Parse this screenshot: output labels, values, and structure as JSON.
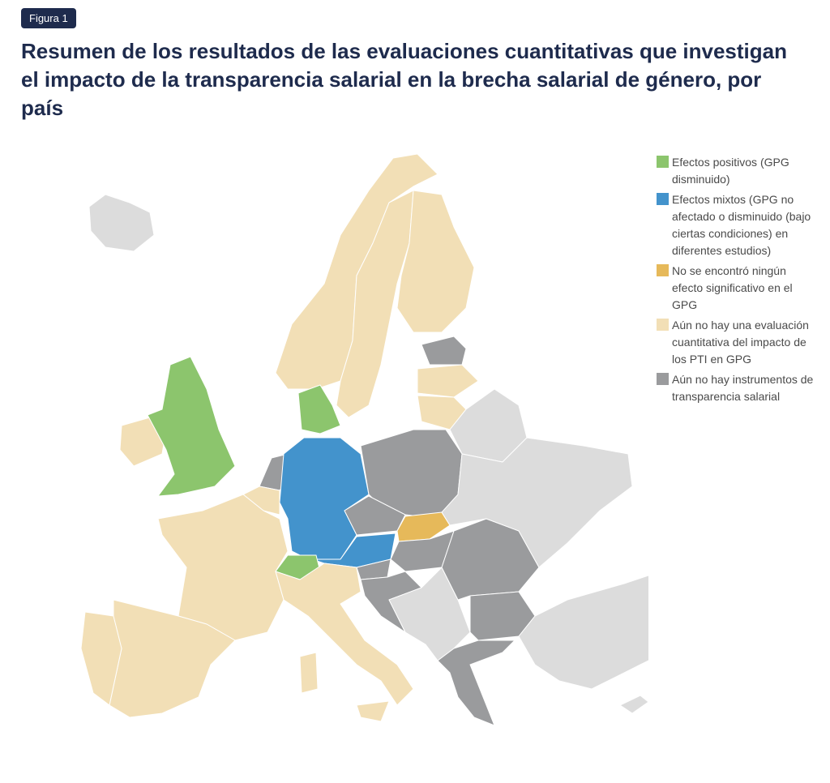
{
  "figure_label": "Figura 1",
  "title": "Resumen de los resultados de las evaluaciones cuantitativas que investigan el impacto de la transparencia salarial en la brecha salarial de género, por país",
  "colors": {
    "positive": "#8cc56d",
    "mixed": "#4393cc",
    "none": "#e6b95a",
    "no_evaluation": "#f2dfb6",
    "no_instruments": "#9a9b9d",
    "non_eu": "#dcdcdc"
  },
  "legend": [
    {
      "key": "positive",
      "label": "Efectos positivos (GPG disminuido)"
    },
    {
      "key": "mixed",
      "label": "Efectos mixtos (GPG no afectado o disminuido (bajo ciertas condiciones) en diferentes estudios)"
    },
    {
      "key": "none",
      "label": "No se encontró ningún efecto significativo en el GPG"
    },
    {
      "key": "no_evaluation",
      "label": "Aún no hay una evaluación cuantitativa del impacto de los PTI en GPG"
    },
    {
      "key": "no_instruments",
      "label": "Aún no hay instrumentos de transparencia salarial"
    }
  ],
  "countries": {
    "Iceland": "non_eu",
    "United Kingdom": "positive",
    "Ireland": "no_evaluation",
    "Norway": "no_evaluation",
    "Sweden": "no_evaluation",
    "Finland": "no_evaluation",
    "Estonia": "no_instruments",
    "Latvia": "no_evaluation",
    "Lithuania": "no_evaluation",
    "Denmark": "positive",
    "Netherlands": "no_instruments",
    "Belgium": "no_evaluation",
    "Germany": "mixed",
    "Poland": "no_instruments",
    "Czechia": "no_instruments",
    "Slovakia": "none",
    "Austria": "mixed",
    "Switzerland": "positive",
    "France": "no_evaluation",
    "Spain": "no_evaluation",
    "Portugal": "no_evaluation",
    "Italy": "no_evaluation",
    "Slovenia": "no_instruments",
    "Croatia": "no_instruments",
    "Hungary": "no_instruments",
    "Romania": "no_instruments",
    "Bulgaria": "no_instruments",
    "Greece": "no_instruments",
    "Belarus": "non_eu",
    "Ukraine": "non_eu",
    "Balkans": "non_eu",
    "Turkey": "non_eu",
    "Cyprus": "non_eu"
  }
}
